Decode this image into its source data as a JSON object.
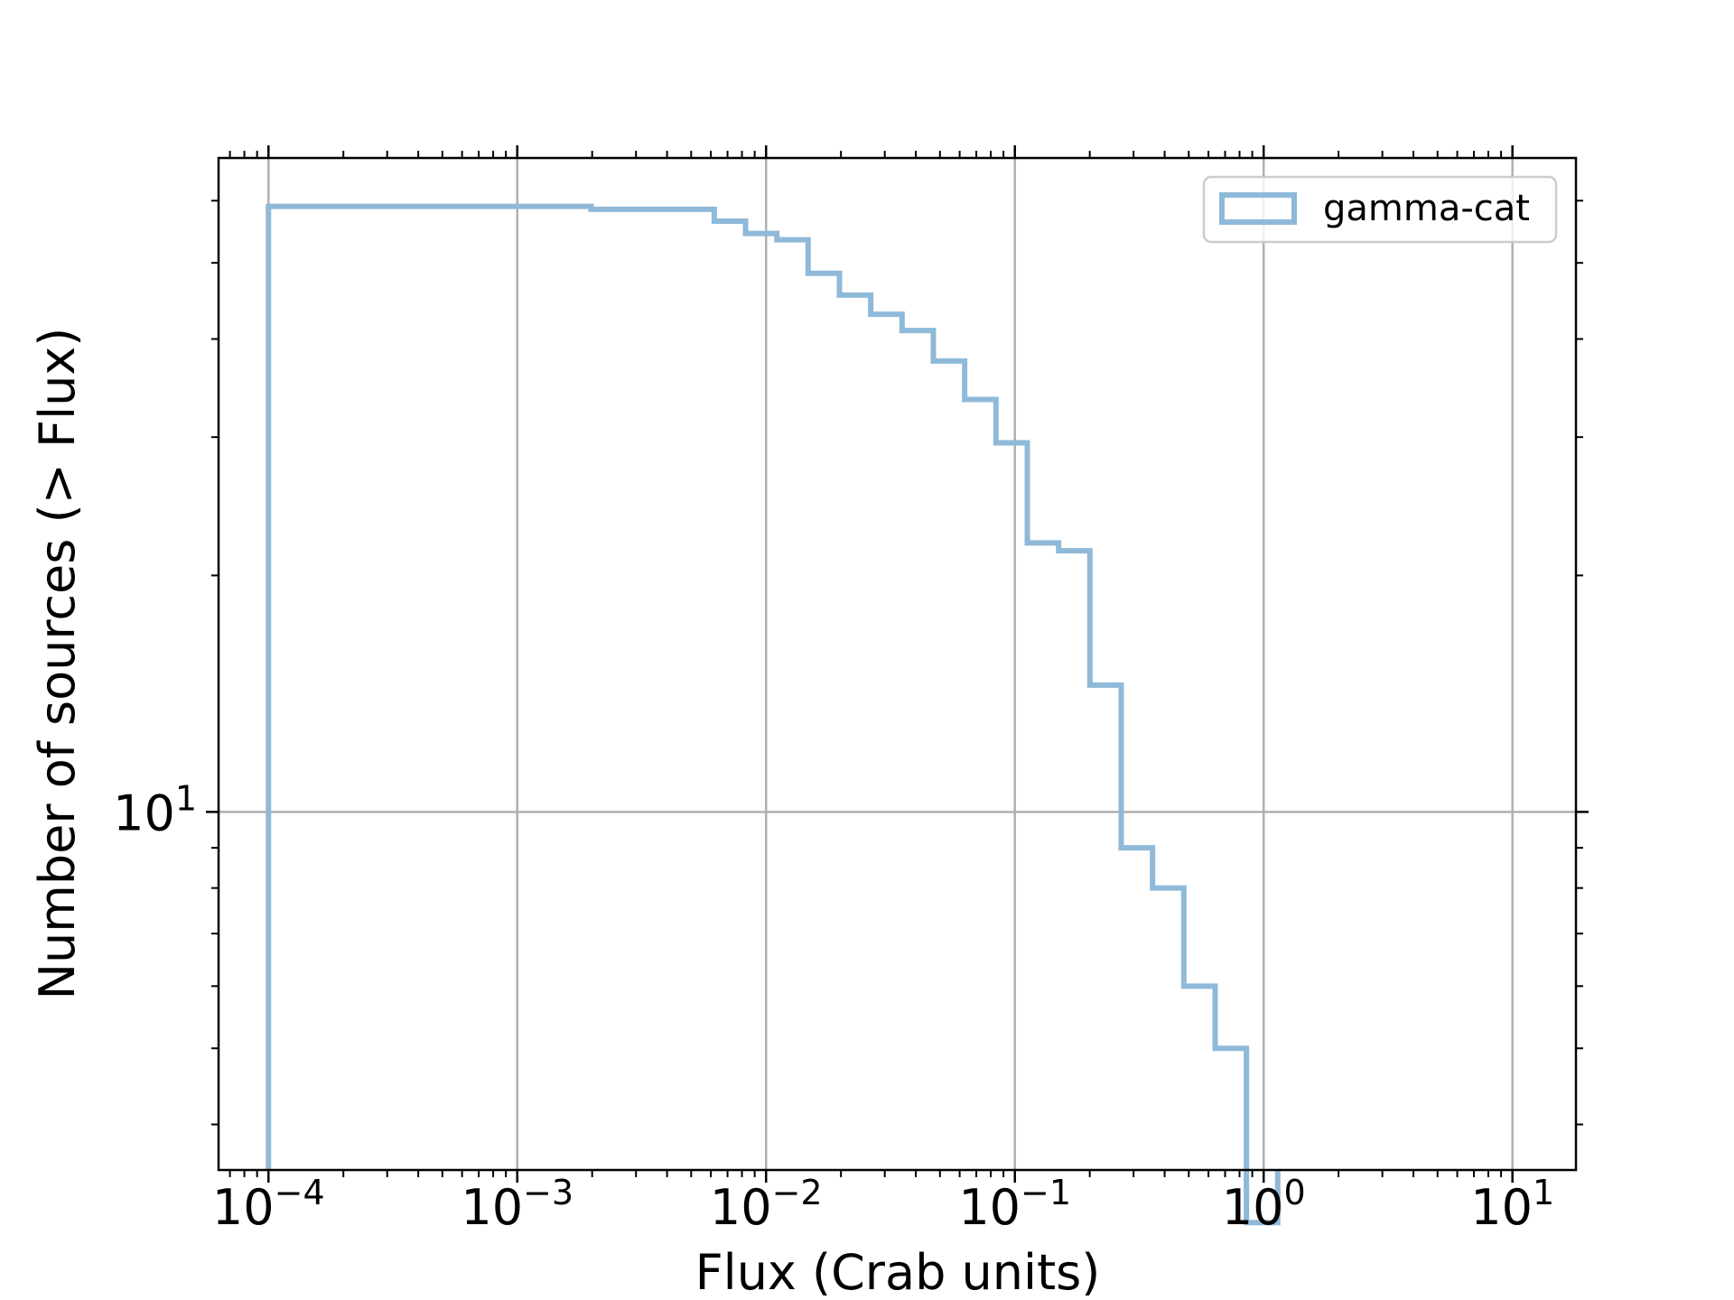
{
  "chart_data": {
    "type": "line",
    "style": "step-histogram-outline",
    "xlabel": "Flux (Crab units)",
    "ylabel": "Number of sources (> Flux)",
    "xscale": "log",
    "yscale": "log",
    "xlim": [
      6.3e-05,
      18
    ],
    "ylim": [
      3.5,
      68
    ],
    "x_tick_values": [
      0.0001,
      0.001,
      0.01,
      0.1,
      1,
      10
    ],
    "x_tick_labels": [
      {
        "base": "10",
        "exp": "−4"
      },
      {
        "base": "10",
        "exp": "−3"
      },
      {
        "base": "10",
        "exp": "−2"
      },
      {
        "base": "10",
        "exp": "−1"
      },
      {
        "base": "10",
        "exp": "0"
      },
      {
        "base": "10",
        "exp": "1"
      }
    ],
    "y_tick_values": [
      10
    ],
    "y_tick_labels": [
      {
        "base": "10",
        "exp": "1"
      }
    ],
    "grid": true,
    "legend_position": "upper-right",
    "series": [
      {
        "name": "gamma-cat",
        "color": "#8fb9d9",
        "bin_edges": [
          0.0001,
          0.00198,
          0.00619,
          0.00827,
          0.01105,
          0.01476,
          0.01972,
          0.02635,
          0.0352,
          0.04703,
          0.06284,
          0.08396,
          0.1122,
          0.1499,
          0.2003,
          0.2675,
          0.3575,
          0.4776,
          0.6382,
          0.8527,
          1.139
        ],
        "values": [
          59,
          58.5,
          56.5,
          54.5,
          53.5,
          48.5,
          45.5,
          43,
          41,
          37.5,
          33.5,
          29.5,
          22,
          21.5,
          14.5,
          9,
          8,
          6,
          5,
          3
        ]
      }
    ]
  }
}
